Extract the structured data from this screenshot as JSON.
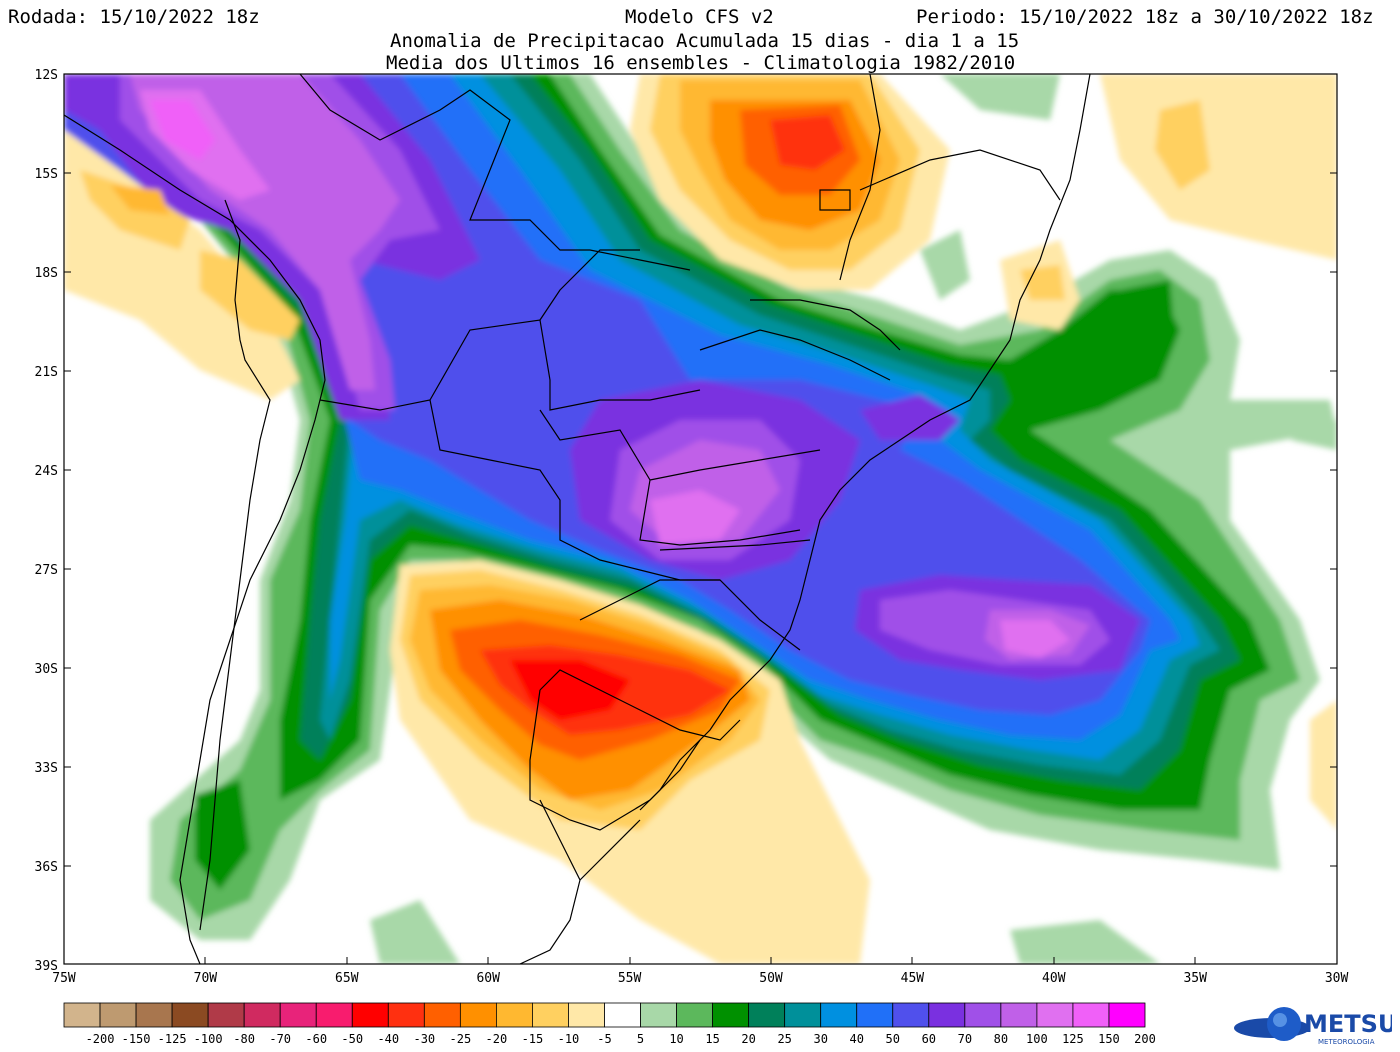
{
  "header": {
    "run": "Rodada: 15/10/2022 18z",
    "model": "Modelo CFS v2",
    "period": "Periodo: 15/10/2022 18z a 30/10/2022 18z",
    "subtitle1": "Anomalia de Precipitacao Acumulada 15 dias - dia 1 a 15",
    "subtitle2": "Media dos Ultimos 16 ensembles - Climatologia 1982/2010"
  },
  "axes": {
    "lat_labels": [
      "12S",
      "15S",
      "18S",
      "21S",
      "24S",
      "27S",
      "30S",
      "33S",
      "36S",
      "39S"
    ],
    "lon_labels": [
      "75W",
      "70W",
      "65W",
      "60W",
      "55W",
      "50W",
      "45W",
      "40W",
      "35W",
      "30W"
    ],
    "lat_range": [
      -39,
      -12
    ],
    "lon_range": [
      -75,
      -30
    ]
  },
  "colorbar": {
    "labels": [
      "-200",
      "-150",
      "-125",
      "-100",
      "-80",
      "-70",
      "-60",
      "-50",
      "-40",
      "-30",
      "-25",
      "-20",
      "-15",
      "-10",
      "-5",
      "5",
      "10",
      "15",
      "20",
      "25",
      "30",
      "40",
      "50",
      "60",
      "70",
      "80",
      "100",
      "125",
      "150",
      "200"
    ],
    "colors": [
      "#d2b48c",
      "#be9a70",
      "#a8764e",
      "#8b4a22",
      "#b03a48",
      "#d02a60",
      "#e8237a",
      "#f81c6e",
      "#ff0000",
      "#ff3010",
      "#ff6000",
      "#ff9000",
      "#ffb830",
      "#ffd060",
      "#ffe8a8",
      "#ffffff",
      "#a8d8a8",
      "#5cb85c",
      "#009000",
      "#00805a",
      "#00909a",
      "#0090e0",
      "#2070f8",
      "#5050ec",
      "#7a30e0",
      "#a050e8",
      "#c060e8",
      "#e070f0",
      "#f060f8",
      "#ff00ff"
    ]
  },
  "logo": {
    "name": "METSUL",
    "tagline": "METEOROLOGIA"
  },
  "map_data": {
    "anomaly_regions": [
      {
        "level": 40,
        "center": [
          -60,
          -22
        ],
        "note": "large positive anomaly over Paraguay / central South America"
      },
      {
        "level": 100,
        "center": [
          -71,
          -13
        ],
        "note": "positive maximum over southern Peru"
      },
      {
        "level": 80,
        "center": [
          -53,
          -25
        ],
        "note": "positive maximum over Paraná / western Santa Catarina"
      },
      {
        "level": 80,
        "center": [
          -40,
          -28.5
        ],
        "note": "positive maximum over South Atlantic"
      },
      {
        "level": -40,
        "center": [
          -56,
          -31
        ],
        "note": "negative minimum over Uruguay / southern Rio Grande do Sul"
      },
      {
        "level": -30,
        "center": [
          -48,
          -14
        ],
        "note": "negative anomaly over central Brazil (Goiás)"
      }
    ]
  }
}
